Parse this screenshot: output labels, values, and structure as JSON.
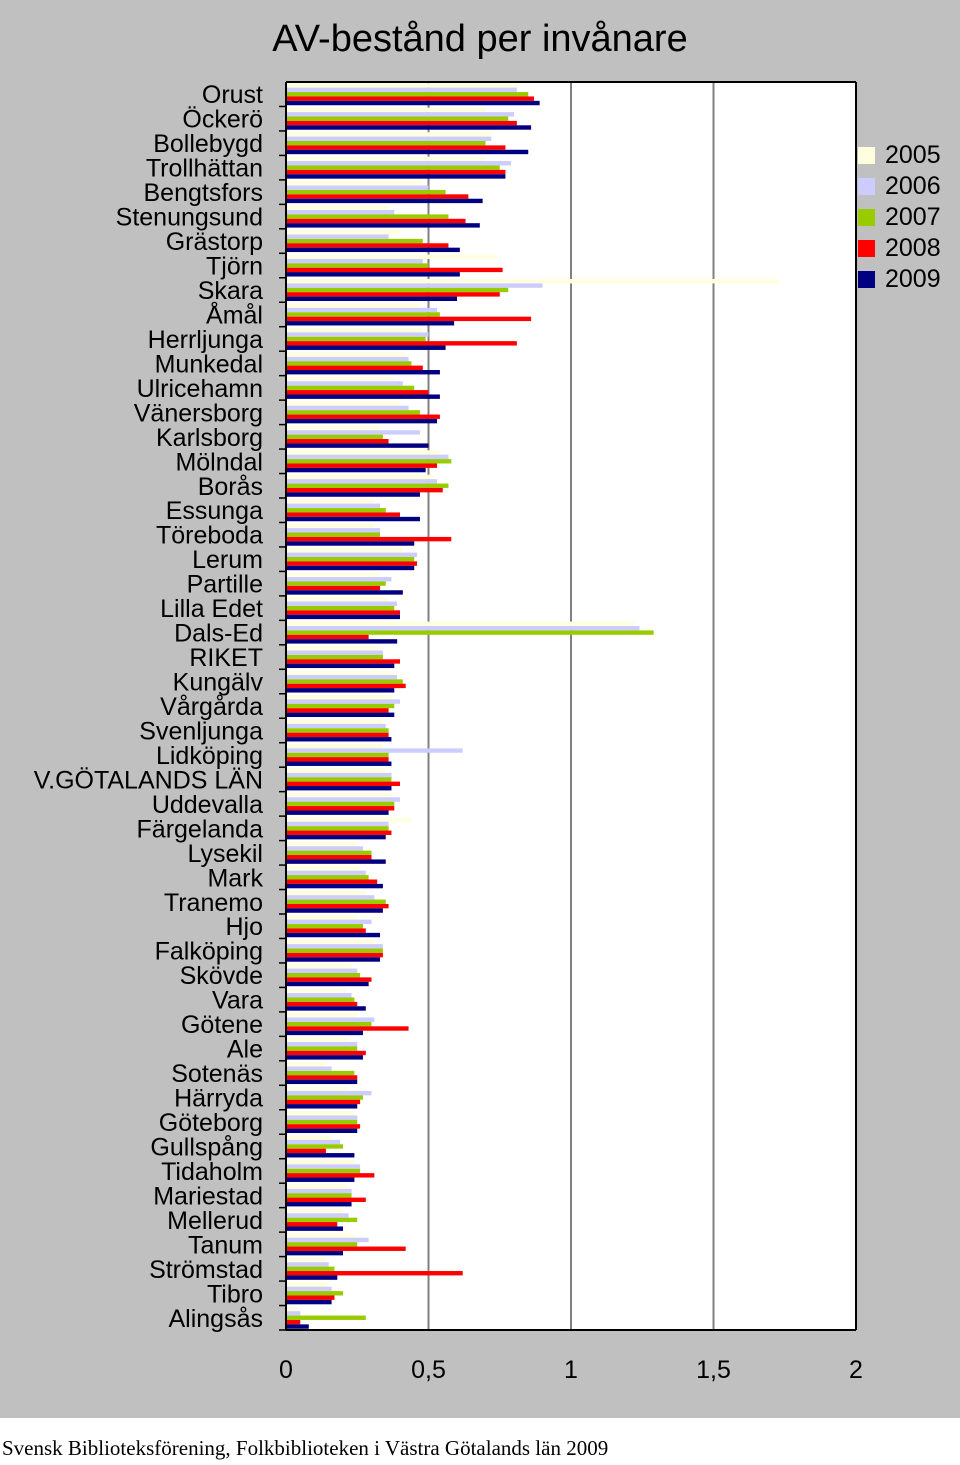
{
  "footer": "Svensk Biblioteksförening, Folkbiblioteken i Västra Götalands län 2009",
  "legend": [
    {
      "name": "2005",
      "color": "#ffffe0"
    },
    {
      "name": "2006",
      "color": "#ccccff"
    },
    {
      "name": "2007",
      "color": "#99cc00"
    },
    {
      "name": "2008",
      "color": "#ff0000"
    },
    {
      "name": "2009",
      "color": "#000080"
    }
  ],
  "chart_data": {
    "type": "bar",
    "orientation": "horizontal",
    "title": "AV-bestånd per invånare",
    "xlabel": "",
    "ylabel": "",
    "xlim": [
      0,
      2
    ],
    "x_ticks": [
      {
        "v": 0,
        "label": "0"
      },
      {
        "v": 0.5,
        "label": "0,5"
      },
      {
        "v": 1,
        "label": "1"
      },
      {
        "v": 1.5,
        "label": "1,5"
      },
      {
        "v": 2,
        "label": "2"
      }
    ],
    "legend_position": "right",
    "categories": [
      "Orust",
      "Öckerö",
      "Bollebygd",
      "Trollhättan",
      "Bengtsfors",
      "Stenungsund",
      "Grästorp",
      "Tjörn",
      "Skara",
      "Åmål",
      "Herrljunga",
      "Munkedal",
      "Ulricehamn",
      "Vänersborg",
      "Karlsborg",
      "Mölndal",
      "Borås",
      "Essunga",
      "Töreboda",
      "Lerum",
      "Partille",
      "Lilla Edet",
      "Dals-Ed",
      "RIKET",
      "Kungälv",
      "Vårgårda",
      "Svenljunga",
      "Lidköping",
      "V.GÖTALANDS LÄN",
      "Uddevalla",
      "Färgelanda",
      "Lysekil",
      "Mark",
      "Tranemo",
      "Hjo",
      "Falköping",
      "Skövde",
      "Vara",
      "Götene",
      "Ale",
      "Sotenäs",
      "Härryda",
      "Göteborg",
      "Gullspång",
      "Tidaholm",
      "Mariestad",
      "Mellerud",
      "Tanum",
      "Strömstad",
      "Tibro",
      "Alingsås"
    ],
    "series": [
      {
        "name": "2005",
        "values": [
          0.82,
          0.7,
          0.72,
          0.7,
          0.48,
          0.36,
          0.4,
          0.74,
          1.73,
          0.47,
          0.48,
          0.42,
          0.38,
          0.4,
          0.33,
          0.54,
          0.52,
          0.31,
          0.31,
          0.41,
          0.33,
          0.36,
          1.22,
          0.32,
          0.38,
          0.37,
          0.34,
          0.34,
          0.35,
          0.37,
          0.44,
          0.25,
          0.26,
          0.28,
          0.25,
          0.31,
          0.23,
          0.21,
          0.25,
          0.22,
          0.14,
          0.22,
          0.24,
          0.16,
          0.24,
          0.22,
          0.2,
          0.24,
          0.14,
          0.15,
          0.04
        ]
      },
      {
        "name": "2006",
        "values": [
          0.81,
          0.8,
          0.72,
          0.79,
          0.5,
          0.38,
          0.36,
          0.48,
          0.9,
          0.53,
          0.5,
          0.43,
          0.41,
          0.43,
          0.47,
          0.57,
          0.53,
          0.33,
          0.33,
          0.46,
          0.37,
          0.39,
          1.24,
          0.34,
          0.39,
          0.4,
          0.35,
          0.62,
          0.37,
          0.4,
          0.36,
          0.27,
          0.28,
          0.31,
          0.3,
          0.34,
          0.25,
          0.23,
          0.31,
          0.25,
          0.16,
          0.3,
          0.25,
          0.19,
          0.26,
          0.23,
          0.22,
          0.29,
          0.15,
          0.16,
          0.05
        ]
      },
      {
        "name": "2007",
        "values": [
          0.85,
          0.78,
          0.7,
          0.75,
          0.56,
          0.57,
          0.48,
          0.5,
          0.78,
          0.54,
          0.49,
          0.44,
          0.45,
          0.47,
          0.34,
          0.58,
          0.57,
          0.35,
          0.33,
          0.45,
          0.35,
          0.38,
          1.29,
          0.34,
          0.41,
          0.38,
          0.36,
          0.36,
          0.37,
          0.38,
          0.36,
          0.3,
          0.29,
          0.35,
          0.27,
          0.34,
          0.26,
          0.24,
          0.3,
          0.25,
          0.24,
          0.27,
          0.25,
          0.2,
          0.26,
          0.23,
          0.25,
          0.25,
          0.17,
          0.2,
          0.28
        ]
      },
      {
        "name": "2008",
        "values": [
          0.87,
          0.81,
          0.77,
          0.77,
          0.64,
          0.63,
          0.57,
          0.76,
          0.75,
          0.86,
          0.81,
          0.48,
          0.5,
          0.54,
          0.36,
          0.53,
          0.55,
          0.4,
          0.58,
          0.46,
          0.33,
          0.4,
          0.29,
          0.4,
          0.42,
          0.36,
          0.36,
          0.36,
          0.4,
          0.38,
          0.37,
          0.3,
          0.32,
          0.36,
          0.28,
          0.34,
          0.3,
          0.25,
          0.43,
          0.28,
          0.25,
          0.26,
          0.26,
          0.14,
          0.31,
          0.28,
          0.18,
          0.42,
          0.62,
          0.17,
          0.05
        ]
      },
      {
        "name": "2009",
        "values": [
          0.89,
          0.86,
          0.85,
          0.77,
          0.69,
          0.68,
          0.61,
          0.61,
          0.6,
          0.59,
          0.56,
          0.54,
          0.54,
          0.53,
          0.5,
          0.49,
          0.47,
          0.47,
          0.45,
          0.45,
          0.41,
          0.4,
          0.39,
          0.38,
          0.38,
          0.38,
          0.37,
          0.37,
          0.37,
          0.36,
          0.35,
          0.35,
          0.34,
          0.34,
          0.33,
          0.33,
          0.29,
          0.28,
          0.27,
          0.27,
          0.25,
          0.25,
          0.25,
          0.24,
          0.24,
          0.23,
          0.2,
          0.2,
          0.18,
          0.16,
          0.08
        ]
      }
    ]
  }
}
